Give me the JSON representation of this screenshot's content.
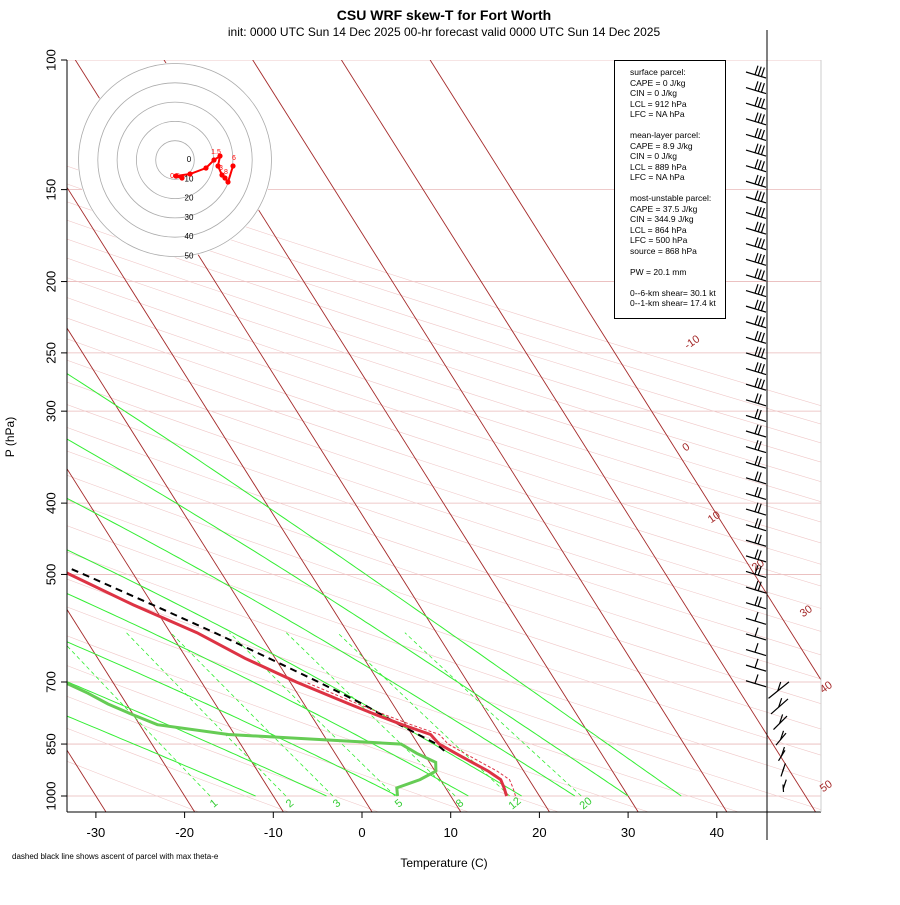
{
  "title": "CSU WRF skew-T for Fort Worth",
  "subtitle": "init: 0000 UTC Sun 14 Dec 2025    00-hr forecast valid 0000 UTC Sun 14 Dec 2025",
  "footnote": "dashed black line shows ascent of parcel with max theta-e",
  "info": {
    "surface": [
      "surface parcel:",
      "CAPE = 0 J/kg",
      "CIN = 0 J/kg",
      "LCL = 912 hPa",
      "LFC = NA hPa"
    ],
    "mean_layer": [
      "mean-layer parcel:",
      "CAPE = 8.9 J/kg",
      "CIN = 0 J/kg",
      "LCL = 889 hPa",
      "LFC = NA hPa"
    ],
    "most_unstable": [
      "most-unstable parcel:",
      "CAPE = 37.5 J/kg",
      "CIN = 344.9 J/kg",
      "LCL = 864 hPa",
      "LFC = 500 hPa",
      "source = 868 hPa"
    ],
    "pw": "PW =  20.1 mm",
    "shear": [
      "0--6-km shear= 30.1 kt",
      "0--1-km shear= 17.4 kt"
    ]
  },
  "chart_data": {
    "type": "skew-t",
    "xlabel": "Temperature (C)",
    "ylabel": "P (hPa)",
    "x_ticks": [
      -30,
      -20,
      -10,
      0,
      10,
      20,
      30,
      40
    ],
    "y_ticks": [
      100,
      150,
      200,
      250,
      300,
      400,
      500,
      700,
      850,
      1000
    ],
    "isotherm_labels": [
      -10,
      0,
      10,
      20,
      30,
      40,
      50
    ],
    "mixing_ratio_labels": [
      "1",
      "2",
      "3",
      "5",
      "8",
      "12",
      "20"
    ],
    "colors": {
      "temperature": "#dd3344",
      "dewpoint": "#66cc55",
      "parcel": "#000000",
      "isotherm": "#a52a2a",
      "moist_adiabat": "#33ee33",
      "mixing_ratio": "#33ee33",
      "hodograph": "#ff0000"
    },
    "temperature": {
      "pressure": [
        1000,
        975,
        950,
        925,
        900,
        875,
        850,
        825,
        800,
        775,
        750,
        700,
        650,
        600,
        550,
        500,
        450,
        400,
        350,
        300,
        250,
        200,
        175,
        150,
        125,
        100
      ],
      "temp_c": [
        16.3,
        16.6,
        16.8,
        16.0,
        14.8,
        13.6,
        12.4,
        12.1,
        9.6,
        7.3,
        5.1,
        0.7,
        -3.4,
        -7.0,
        -12.2,
        -17.2,
        -22.0,
        -24.0,
        -29.9,
        -36.0,
        -43.4,
        -52.6,
        -55.8,
        -55.8,
        -57.6,
        -59.9
      ]
    },
    "dewpoint": {
      "pressure": [
        1000,
        975,
        950,
        925,
        900,
        875,
        850,
        825,
        800,
        775,
        750,
        725,
        700,
        650,
        600,
        550,
        500,
        450,
        400,
        380,
        350,
        300,
        250,
        230,
        200,
        175,
        150
      ],
      "dewpoint_c": [
        4.0,
        4.5,
        7.7,
        10.1,
        10.7,
        9.2,
        8.1,
        -10.7,
        -18.0,
        -20.1,
        -22.1,
        -23.6,
        -25.5,
        -28.5,
        -38.3,
        -42.1,
        -41.1,
        -43.2,
        -61.9,
        -65.8,
        -62.7,
        -62.7,
        -70.3,
        -71.5,
        -69.6,
        -72.5,
        -75.5
      ]
    },
    "parcel": {
      "pressure": [
        868,
        850,
        800,
        750,
        700,
        650,
        600,
        550,
        500,
        450,
        400,
        350,
        300,
        250,
        200,
        150,
        100
      ],
      "temp_c": [
        12.5,
        12.1,
        9.3,
        6.6,
        3.2,
        -0.7,
        -5.0,
        -10.0,
        -15.6,
        -22.1,
        -29.7,
        -38.7,
        -49.6,
        -60.9,
        -74.5,
        -86.7,
        -104.9
      ]
    },
    "winds": {
      "barb_count": 47,
      "speed_range_kt": [
        5,
        35
      ]
    },
    "hodograph": {
      "ring_labels": [
        "0",
        "10",
        "20",
        "30",
        "40",
        "50"
      ],
      "point_labels": [
        "1.5",
        "6",
        "3",
        "8",
        "0.5"
      ]
    }
  }
}
